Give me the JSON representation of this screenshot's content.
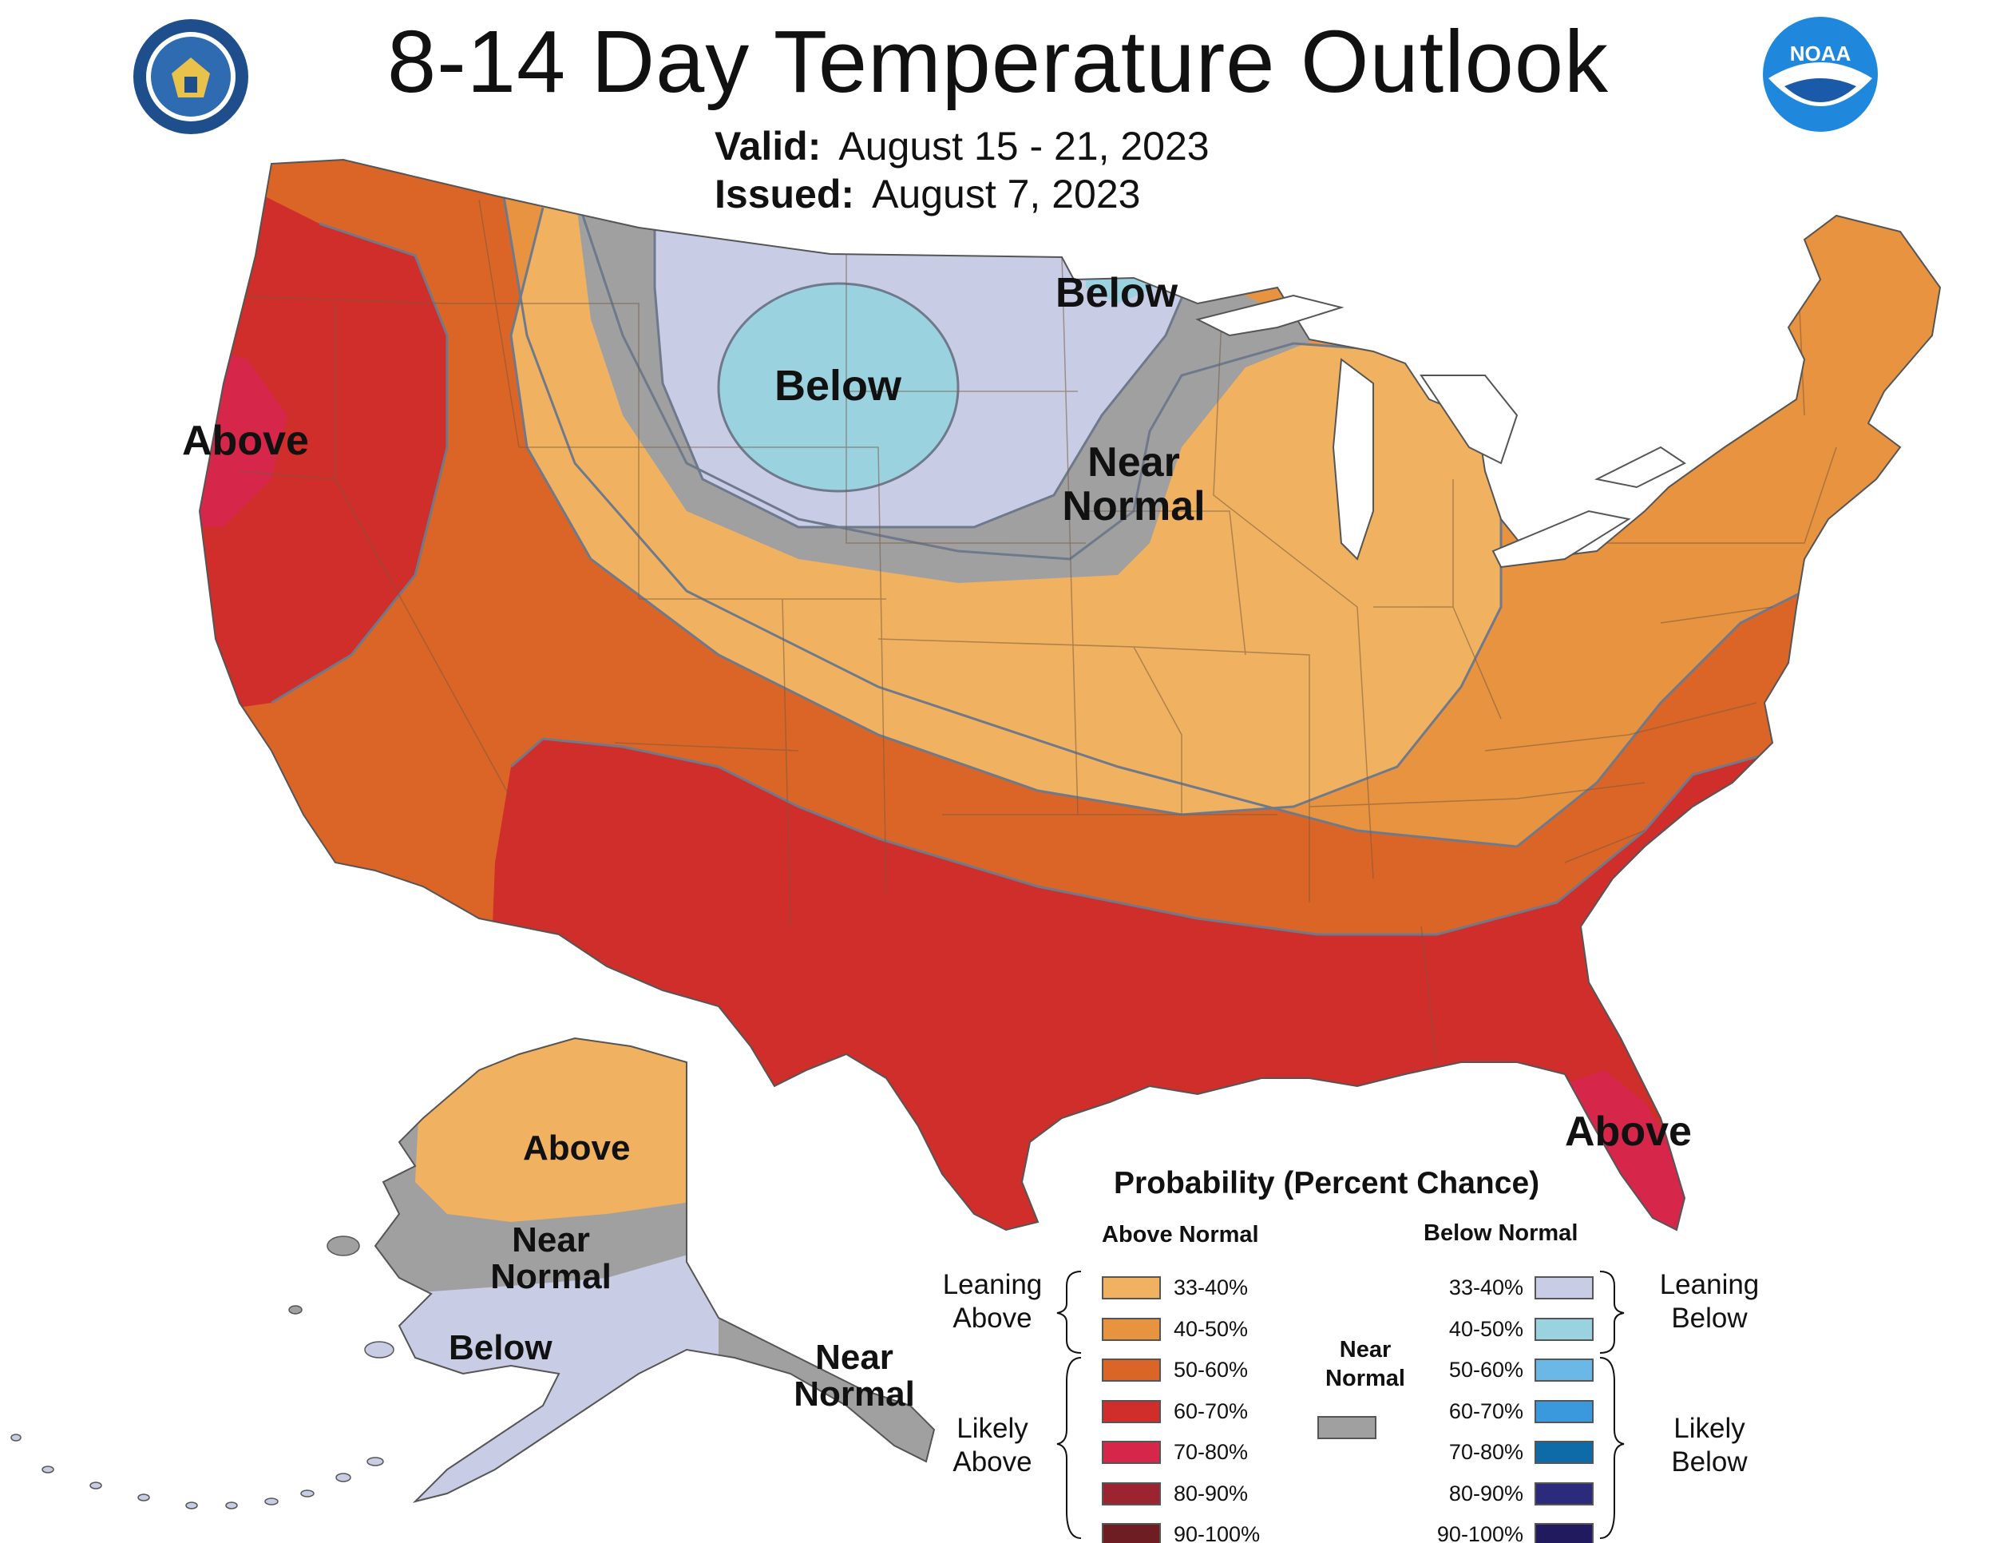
{
  "title": "8-14 Day Temperature Outlook",
  "valid": {
    "label": "Valid:",
    "value": "August 15 - 21, 2023"
  },
  "issued": {
    "label": "Issued:",
    "value": "August 7, 2023"
  },
  "map_labels": {
    "west_above": "Above",
    "north_below": "Below",
    "mn_below": "Below",
    "near_normal_1": "Near",
    "near_normal_2": "Normal",
    "fl_above": "Above",
    "ak_above": "Above",
    "ak_near_1": "Near",
    "ak_near_2": "Normal",
    "ak_below": "Below",
    "se_ak_near_1": "Near",
    "se_ak_near_2": "Normal"
  },
  "legend": {
    "title": "Probability (Percent Chance)",
    "above_header": "Above Normal",
    "below_header": "Below Normal",
    "leaning_above": [
      "Leaning",
      "Above"
    ],
    "likely_above": [
      "Likely",
      "Above"
    ],
    "leaning_below": [
      "Leaning",
      "Below"
    ],
    "likely_below": [
      "Likely",
      "Below"
    ],
    "near_normal": [
      "Near",
      "Normal"
    ],
    "above_bins": [
      {
        "range": "33-40%",
        "color": "#f0b260"
      },
      {
        "range": "40-50%",
        "color": "#e8933f"
      },
      {
        "range": "50-60%",
        "color": "#db6527"
      },
      {
        "range": "60-70%",
        "color": "#cf2e2a"
      },
      {
        "range": "70-80%",
        "color": "#d6274a"
      },
      {
        "range": "80-90%",
        "color": "#9c2431"
      },
      {
        "range": "90-100%",
        "color": "#6e1e22"
      }
    ],
    "below_bins": [
      {
        "range": "33-40%",
        "color": "#c8cce4"
      },
      {
        "range": "40-50%",
        "color": "#9ad2e0"
      },
      {
        "range": "50-60%",
        "color": "#6bb8e6"
      },
      {
        "range": "60-70%",
        "color": "#3a98dc"
      },
      {
        "range": "70-80%",
        "color": "#0f6aa8"
      },
      {
        "range": "80-90%",
        "color": "#2c2a7a"
      },
      {
        "range": "90-100%",
        "color": "#211a5e"
      }
    ],
    "near_normal_color": "#a0a0a0"
  },
  "logos": {
    "left": "department-of-commerce-seal",
    "right": "noaa-logo",
    "right_text": "NOAA"
  }
}
